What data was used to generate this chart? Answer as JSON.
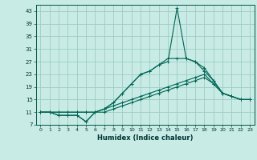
{
  "xlabel": "Humidex (Indice chaleur)",
  "background_color": "#c8ebe5",
  "grid_color": "#9dccc4",
  "line_color": "#006655",
  "xlim": [
    -0.5,
    23.5
  ],
  "ylim": [
    7,
    45
  ],
  "yticks": [
    7,
    11,
    15,
    19,
    23,
    27,
    31,
    35,
    39,
    43
  ],
  "xticks": [
    0,
    1,
    2,
    3,
    4,
    5,
    6,
    7,
    8,
    9,
    10,
    11,
    12,
    13,
    14,
    15,
    16,
    17,
    18,
    19,
    20,
    21,
    22,
    23
  ],
  "series": [
    [
      11,
      11,
      10,
      10,
      10,
      8,
      11,
      12,
      14,
      17,
      20,
      23,
      24,
      26,
      27,
      44,
      28,
      27,
      24,
      21,
      17,
      16,
      15,
      15
    ],
    [
      11,
      11,
      10,
      10,
      10,
      8,
      11,
      12,
      14,
      17,
      20,
      23,
      24,
      26,
      28,
      28,
      28,
      27,
      25,
      21,
      17,
      16,
      15,
      15
    ],
    [
      11,
      11,
      11,
      11,
      11,
      11,
      11,
      12,
      13,
      14,
      15,
      16,
      17,
      18,
      19,
      20,
      21,
      22,
      23,
      20,
      17,
      16,
      15,
      15
    ],
    [
      11,
      11,
      11,
      11,
      11,
      11,
      11,
      11,
      12,
      13,
      14,
      15,
      16,
      17,
      18,
      19,
      20,
      21,
      22,
      20,
      17,
      16,
      15,
      15
    ]
  ]
}
